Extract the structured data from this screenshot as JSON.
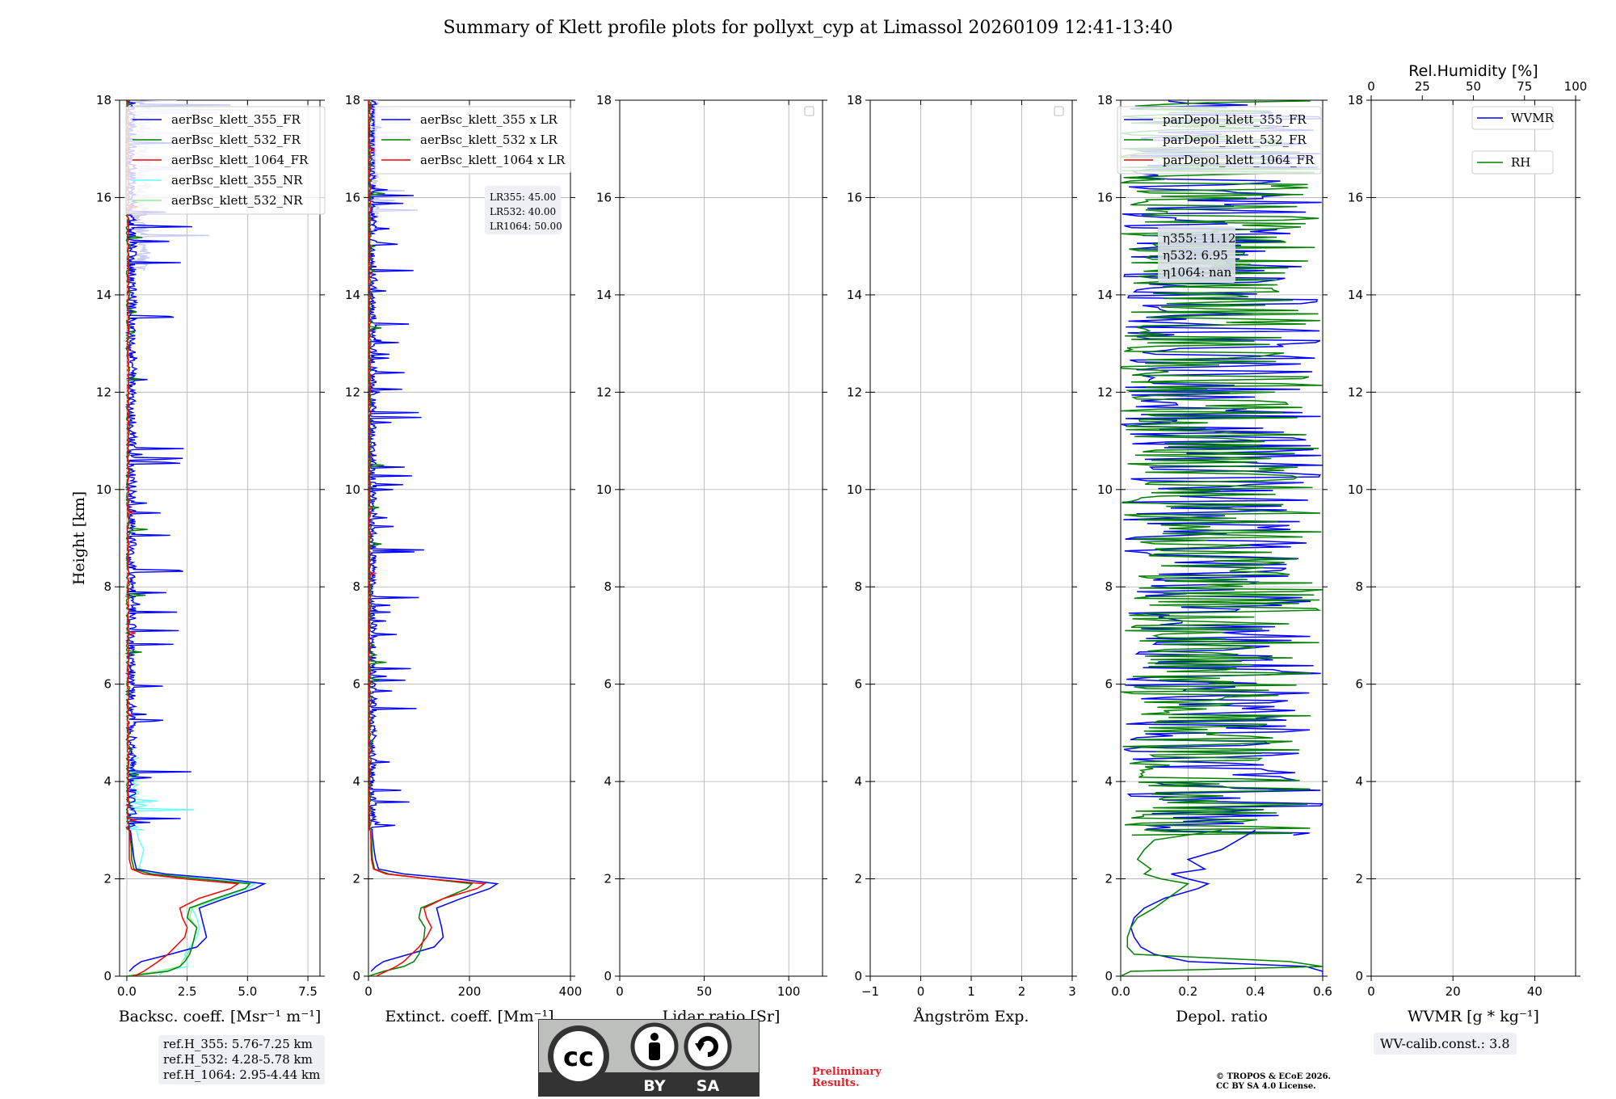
{
  "title": "Summary of Klett profile plots for pollyxt_cyp at Limassol 20260109 12:41-13:40",
  "colors": {
    "blue": "#0000ff",
    "green": "#008000",
    "red": "#ff0000",
    "cyan": "#66ffff",
    "lightgreen": "#90ee90",
    "lavender": "#c8c8f5"
  },
  "y_axis": {
    "label": "Height [km]",
    "ticks": [
      "0",
      "2",
      "4",
      "6",
      "8",
      "10",
      "12",
      "14",
      "16",
      "18"
    ]
  },
  "panels": [
    {
      "id": "backscatter",
      "xlabel": "Backsc. coeff. [Msr⁻¹ m⁻¹]",
      "xlim": [
        -0.3,
        8.0
      ],
      "xticks": [
        0,
        2.5,
        5.0,
        7.5
      ],
      "xtick_labels": [
        "0.0",
        "2.5",
        "5.0",
        "7.5"
      ],
      "legend": [
        {
          "label": "aerBsc_klett_355_FR",
          "color": "#0000ff"
        },
        {
          "label": "aerBsc_klett_532_FR",
          "color": "#008000"
        },
        {
          "label": "aerBsc_klett_1064_FR",
          "color": "#ff0000"
        },
        {
          "label": "aerBsc_klett_355_NR",
          "color": "#66ffff"
        },
        {
          "label": "aerBsc_klett_532_NR",
          "color": "#90ee90"
        }
      ]
    },
    {
      "id": "extinction",
      "xlabel": "Extinct. coeff. [Mm⁻¹]",
      "xlim": [
        0,
        400
      ],
      "xticks": [
        0,
        200,
        400
      ],
      "xtick_labels": [
        "0",
        "200",
        "400"
      ],
      "legend": [
        {
          "label": "aerBsc_klett_355 x LR",
          "color": "#0000ff"
        },
        {
          "label": "aerBsc_klett_532 x LR",
          "color": "#008000"
        },
        {
          "label": "aerBsc_klett_1064 x LR",
          "color": "#ff0000"
        }
      ],
      "lr_box": [
        "LR355: 45.00",
        "LR532: 40.00",
        "LR1064: 50.00"
      ]
    },
    {
      "id": "lidar_ratio",
      "xlabel": "Lidar ratio [Sr]",
      "xlim": [
        0,
        120
      ],
      "xticks": [
        0,
        50,
        100
      ],
      "xtick_labels": [
        "0",
        "50",
        "100"
      ],
      "legend": []
    },
    {
      "id": "angstrom",
      "xlabel": "Ångström Exp.",
      "xlim": [
        -1,
        3
      ],
      "xticks": [
        -1,
        0,
        1,
        2,
        3
      ],
      "xtick_labels": [
        "−1",
        "0",
        "1",
        "2",
        "3"
      ],
      "legend": []
    },
    {
      "id": "depol",
      "xlabel": "Depol. ratio",
      "xlim": [
        0,
        0.6
      ],
      "xticks": [
        0,
        0.2,
        0.4,
        0.6
      ],
      "xtick_labels": [
        "0.0",
        "0.2",
        "0.4",
        "0.6"
      ],
      "legend": [
        {
          "label": "parDepol_klett_355_FR",
          "color": "#0000ff"
        },
        {
          "label": "parDepol_klett_532_FR",
          "color": "#008000"
        },
        {
          "label": "parDepol_klett_1064_FR",
          "color": "#ff0000"
        }
      ],
      "eta_box": [
        "η355: 11.12",
        "η532: 6.95",
        "η1064: nan"
      ]
    },
    {
      "id": "wvmr",
      "xlabel": "WVMR [g * kg⁻¹]",
      "xlim": [
        0,
        50
      ],
      "xticks": [
        0,
        20,
        40
      ],
      "xtick_labels": [
        "0",
        "20",
        "40"
      ],
      "top_axis_label": "Rel.Humidity [%]",
      "top_xlim": [
        0,
        100
      ],
      "top_xticks": [
        0,
        25,
        50,
        75,
        100
      ],
      "top_xtick_labels": [
        "0",
        "25",
        "50",
        "75",
        "100"
      ],
      "legend": [
        {
          "label": "WVMR",
          "color": "#0000ff"
        },
        {
          "label": "RH",
          "color": "#008000"
        }
      ]
    }
  ],
  "chart_data": {
    "type": "line",
    "title": "Summary of Klett profile plots for pollyxt_cyp at Limassol 20260109 12:41-13:40",
    "ylabel": "Height [km]",
    "ylim": [
      0,
      18
    ],
    "y_km": [
      0.0,
      0.1,
      0.2,
      0.3,
      0.45,
      0.6,
      0.8,
      1.0,
      1.2,
      1.4,
      1.6,
      1.8,
      1.9,
      2.0,
      2.1,
      2.2,
      2.4,
      2.6,
      2.8,
      3.0
    ],
    "backscatter_Mm": {
      "355_FR": [
        null,
        0.1,
        0.3,
        0.6,
        1.8,
        2.9,
        3.3,
        3.2,
        3.1,
        3.0,
        4.1,
        5.3,
        5.7,
        4.0,
        1.6,
        0.4,
        0.3,
        0.25,
        0.2,
        0.15
      ],
      "532_FR": [
        0.0,
        1.7,
        2.2,
        2.4,
        2.6,
        2.7,
        2.8,
        2.9,
        2.5,
        2.6,
        3.7,
        4.9,
        5.1,
        3.0,
        1.0,
        0.3,
        0.2,
        0.2,
        0.15,
        0.1
      ],
      "1064_FR": [
        0.3,
        0.7,
        1.0,
        1.3,
        1.7,
        2.0,
        2.4,
        2.5,
        2.3,
        2.2,
        3.0,
        4.3,
        4.6,
        2.4,
        0.7,
        0.2,
        0.1,
        0.1,
        0.1,
        0.1
      ],
      "355_NR": [
        1.3,
        1.5,
        2.5,
        2.5,
        2.4,
        2.6,
        2.9,
        3.0,
        2.9,
        2.7,
        3.9,
        5.0,
        5.3,
        3.5,
        1.4,
        0.5,
        0.6,
        0.7,
        0.5,
        0.4
      ],
      "532_NR": [
        0.0,
        1.3,
        2.2,
        2.3,
        2.5,
        2.7,
        2.8,
        2.9,
        2.6,
        2.7,
        3.8,
        4.9,
        5.1,
        3.0,
        1.1,
        0.3,
        0.2,
        0.2,
        0.2,
        0.1
      ]
    },
    "extinction_Mm": {
      "355": [
        null,
        5,
        15,
        30,
        80,
        130,
        148,
        145,
        140,
        135,
        185,
        240,
        255,
        175,
        70,
        20,
        14,
        11,
        9,
        7
      ],
      "532": [
        0,
        30,
        70,
        90,
        100,
        105,
        110,
        112,
        100,
        104,
        150,
        195,
        205,
        120,
        40,
        12,
        8,
        7,
        6,
        4
      ],
      "1064": [
        15,
        35,
        55,
        70,
        85,
        100,
        115,
        125,
        115,
        110,
        150,
        215,
        230,
        120,
        35,
        10,
        6,
        5,
        5,
        4
      ]
    },
    "depol_355": [
      0.6,
      0.6,
      0.55,
      0.2,
      0.1,
      0.06,
      0.04,
      0.03,
      0.04,
      0.07,
      0.13,
      0.23,
      0.26,
      0.2,
      0.15,
      0.25,
      0.2,
      0.3,
      0.35,
      0.4
    ],
    "depol_532": [
      0.0,
      0.03,
      0.6,
      0.5,
      0.04,
      0.02,
      0.02,
      0.03,
      0.05,
      0.1,
      0.14,
      0.18,
      0.2,
      0.12,
      0.07,
      0.09,
      0.05,
      0.07,
      0.1,
      0.3
    ],
    "ref_heights": [
      "ref.H_355: 5.76-7.25 km",
      "ref.H_532: 4.28-5.78 km",
      "ref.H_1064: 2.95-4.44 km"
    ],
    "wv_calib": "WV-calib.const.: 3.8"
  },
  "footer": {
    "cc_by": "BY",
    "cc_sa": "SA",
    "cc_mark": "cc",
    "preliminary": [
      "Preliminary",
      "Results."
    ],
    "copyright": [
      "© TROPOS & ECoE 2026.",
      "CC BY SA 4.0 License."
    ]
  }
}
